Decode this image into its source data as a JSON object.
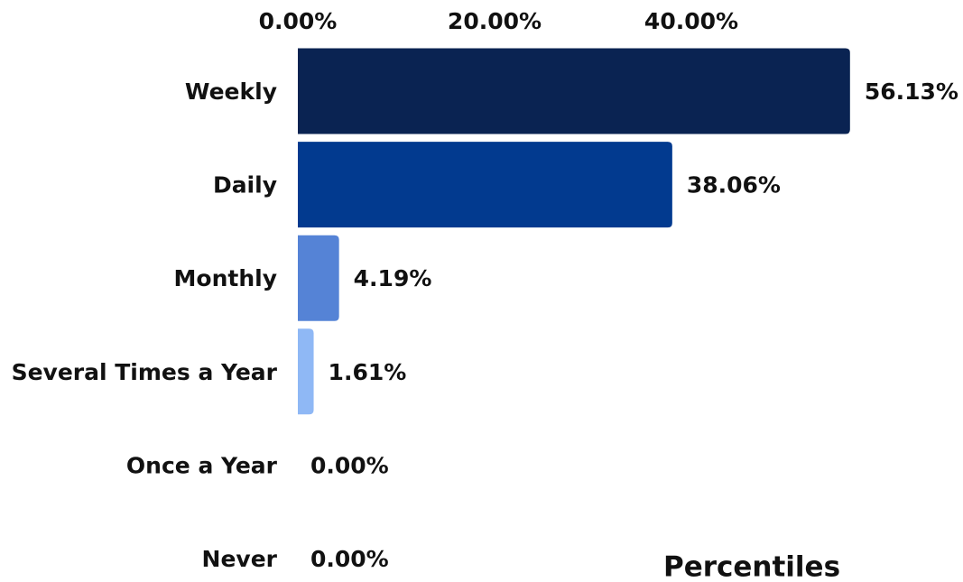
{
  "chart_data": {
    "type": "hbar",
    "categories": [
      "Weekly",
      "Daily",
      "Monthly",
      "Several Times a Year",
      "Once a Year",
      "Never"
    ],
    "values": [
      56.13,
      38.06,
      4.19,
      1.61,
      0,
      0
    ],
    "value_labels": [
      "56.13%",
      "38.06%",
      "4.19%",
      "1.61%",
      "0.00%",
      "0.00%"
    ],
    "colors": [
      "#0a2352",
      "#023a8f",
      "#5583d6",
      "#8fb8f5",
      "#8fb8f5",
      "#8fb8f5"
    ],
    "xlim": [
      0,
      60
    ],
    "xticks": [
      {
        "value": 0,
        "label": "0.00%"
      },
      {
        "value": 20,
        "label": "20.00%"
      },
      {
        "value": 40,
        "label": "40.00%"
      }
    ],
    "xlabel": "Percentiles"
  }
}
